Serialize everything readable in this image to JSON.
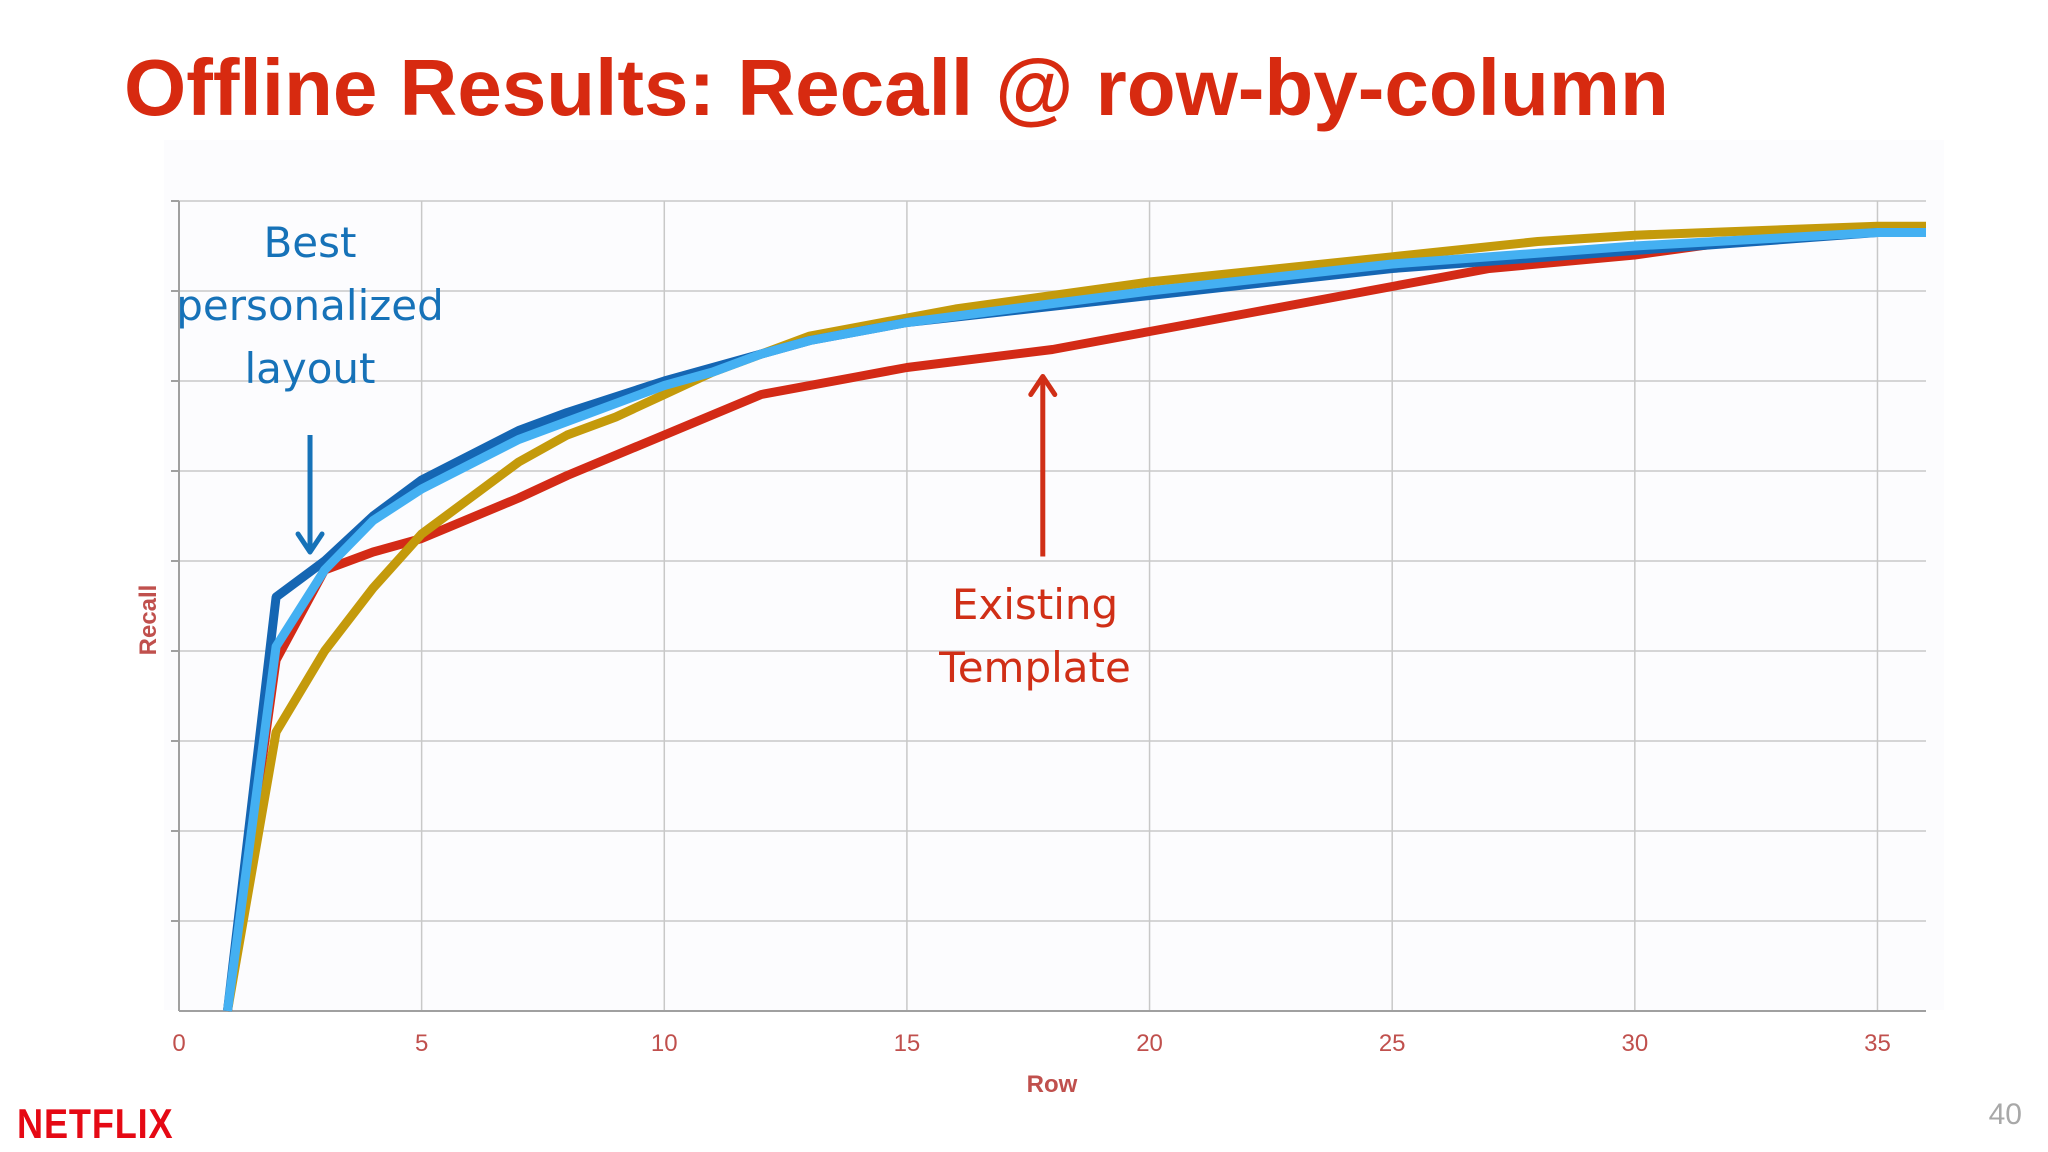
{
  "slide": {
    "title": "Offline Results: Recall @ row-by-column",
    "logo": "NETFLIX",
    "page_number": "40"
  },
  "colors": {
    "title": "#d72a10",
    "axis_text": "#c0504d",
    "grid": "#c8c8c8",
    "best_personalized_dark": "#1566b3",
    "best_personalized_light": "#44b0f2",
    "existing_template": "#d32a16",
    "gold_series": "#c49a0b"
  },
  "chart_data": {
    "type": "line",
    "xlabel": "Row",
    "ylabel": "Recall",
    "xlim": [
      0,
      36
    ],
    "ylim": [
      0,
      9
    ],
    "x_ticks": [
      0,
      5,
      10,
      15,
      20,
      25,
      30,
      35
    ],
    "y_tick_labels_shown": false,
    "grid": true,
    "legend": "none",
    "series": [
      {
        "key": "template",
        "color": "#d32a16",
        "x": [
          1,
          2,
          3,
          4,
          5,
          7,
          8,
          10,
          12,
          14,
          15,
          18,
          19,
          20,
          22,
          24,
          25,
          26,
          27,
          30,
          32,
          34,
          36
        ],
        "y": [
          0,
          3.9,
          4.9,
          5.1,
          5.25,
          5.7,
          5.95,
          6.4,
          6.85,
          7.05,
          7.15,
          7.35,
          7.45,
          7.55,
          7.75,
          7.95,
          8.05,
          8.15,
          8.25,
          8.4,
          8.55,
          8.65,
          8.65
        ]
      },
      {
        "key": "gold",
        "color": "#c49a0b",
        "x": [
          1,
          2,
          3,
          4,
          5,
          7,
          8,
          9,
          10,
          11,
          12,
          13,
          15,
          16,
          20,
          25,
          28,
          30,
          35,
          36
        ],
        "y": [
          0,
          3.1,
          4,
          4.7,
          5.3,
          6.1,
          6.4,
          6.6,
          6.85,
          7.1,
          7.3,
          7.5,
          7.7,
          7.8,
          8.1,
          8.38,
          8.55,
          8.62,
          8.72,
          8.72
        ]
      },
      {
        "key": "best_dark",
        "color": "#1566b3",
        "x": [
          1,
          2,
          3,
          4,
          5,
          7,
          8,
          10,
          11,
          12,
          13,
          15,
          20,
          25,
          30,
          35,
          36
        ],
        "y": [
          0,
          4.6,
          5,
          5.5,
          5.9,
          6.45,
          6.65,
          7,
          7.15,
          7.3,
          7.45,
          7.65,
          7.95,
          8.25,
          8.45,
          8.65,
          8.65
        ]
      },
      {
        "key": "best_light",
        "color": "#44b0f2",
        "x": [
          1,
          2,
          3,
          4,
          5,
          7,
          8,
          10,
          11,
          12,
          13,
          15,
          20,
          25,
          30,
          35,
          36
        ],
        "y": [
          0,
          4.05,
          4.9,
          5.45,
          5.8,
          6.35,
          6.55,
          6.95,
          7.1,
          7.3,
          7.45,
          7.65,
          8,
          8.3,
          8.5,
          8.65,
          8.65
        ]
      }
    ],
    "annotations": [
      {
        "key": "best",
        "lines": [
          "Best",
          "personalized",
          "layout"
        ],
        "color": "#1672b8",
        "arrow_tip": [
          2.7,
          5.1
        ],
        "arrow_tail": [
          2.7,
          6.4
        ]
      },
      {
        "key": "existing",
        "lines": [
          "Existing",
          "Template"
        ],
        "color": "#d02f17",
        "arrow_tip": [
          17.8,
          7.05
        ],
        "arrow_tail": [
          17.8,
          5.05
        ]
      }
    ]
  }
}
